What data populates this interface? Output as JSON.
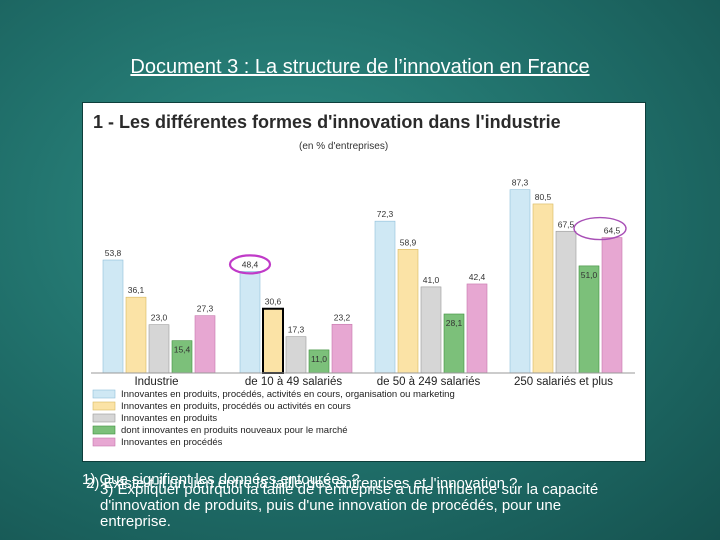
{
  "page": {
    "title": "Document 3 : La structure de l’innovation en France"
  },
  "chart_data": {
    "type": "bar",
    "title": "1 - Les différentes formes d'innovation dans l'industrie",
    "subtitle": "(en % d'entreprises)",
    "categories": [
      "Industrie",
      "de 10 à 49 salariés",
      "de 50 à 249 salariés",
      "250 salariés et plus"
    ],
    "series": [
      {
        "name": "Innovantes en produits, procédés, activités en cours, organisation ou marketing",
        "color": "#cfe8f4",
        "values": [
          53.8,
          48.4,
          72.3,
          87.3
        ]
      },
      {
        "name": "Innovantes en produits, procédés ou activités en cours",
        "color": "#fbe3a6",
        "values": [
          36.1,
          30.6,
          58.9,
          80.5
        ]
      },
      {
        "name": "Innovantes en produits",
        "color": "#d6d6d6",
        "values": [
          23.0,
          17.3,
          41.0,
          67.5
        ]
      },
      {
        "name": "dont innovantes en produits nouveaux pour le marché",
        "color": "#7cc07a",
        "values": [
          15.4,
          11.0,
          28.1,
          51.0
        ]
      },
      {
        "name": "Innovantes en procédés",
        "color": "#e7a7d2",
        "values": [
          27.3,
          23.2,
          42.4,
          64.5
        ]
      }
    ],
    "value_labels": [
      [
        "53,8",
        "48,4",
        "72,3",
        "87,3"
      ],
      [
        "36,1",
        "30,6",
        "58,9",
        "80,5"
      ],
      [
        "23,0",
        "17,3",
        "41,0",
        "67,5"
      ],
      [
        "15,4",
        "11,0",
        "28,1",
        "51,0"
      ],
      [
        "27,3",
        "23,2",
        "42,4",
        "64,5"
      ]
    ],
    "ylim": [
      0,
      100
    ],
    "grid": false,
    "legend_position": "bottom",
    "highlights": [
      "de 10 à 49 salariés: 48,4",
      "250 salariés et plus: 64,5"
    ]
  },
  "questions": [
    "1) Que signifient les données entourées ?",
    "2) Existe-t-il un lien entre la taille des entreprises et l'innovation ?",
    "3) Expliquer pourquoi la taille de l'entreprise a une influence sur la capacité d'innovation de produits, puis d'une innovation de procédés, pour une entreprise."
  ]
}
